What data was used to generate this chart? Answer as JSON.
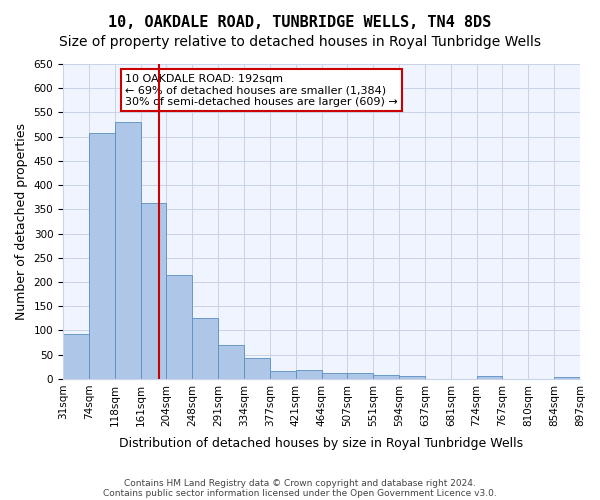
{
  "title": "10, OAKDALE ROAD, TUNBRIDGE WELLS, TN4 8DS",
  "subtitle": "Size of property relative to detached houses in Royal Tunbridge Wells",
  "xlabel": "Distribution of detached houses by size in Royal Tunbridge Wells",
  "ylabel": "Number of detached properties",
  "footnote1": "Contains HM Land Registry data © Crown copyright and database right 2024.",
  "footnote2": "Contains public sector information licensed under the Open Government Licence v3.0.",
  "bar_labels": [
    "31sqm",
    "74sqm",
    "118sqm",
    "161sqm",
    "204sqm",
    "248sqm",
    "291sqm",
    "334sqm",
    "377sqm",
    "421sqm",
    "464sqm",
    "507sqm",
    "551sqm",
    "594sqm",
    "637sqm",
    "681sqm",
    "724sqm",
    "767sqm",
    "810sqm",
    "854sqm",
    "897sqm"
  ],
  "bar_values": [
    92,
    507,
    530,
    363,
    215,
    126,
    70,
    43,
    16,
    19,
    12,
    12,
    9,
    5,
    0,
    0,
    5,
    0,
    0,
    4
  ],
  "bar_color": "#aec6e8",
  "bar_edge_color": "#5a8fc0",
  "bar_width": 1.0,
  "property_size": 192,
  "property_bar_index": 3,
  "vline_color": "#cc0000",
  "annotation_text": "10 OAKDALE ROAD: 192sqm\n← 69% of detached houses are smaller (1,384)\n30% of semi-detached houses are larger (609) →",
  "annotation_box_color": "#cc0000",
  "ylim": [
    0,
    650
  ],
  "yticks": [
    0,
    50,
    100,
    150,
    200,
    250,
    300,
    350,
    400,
    450,
    500,
    550,
    600,
    650
  ],
  "bg_color": "#f0f4ff",
  "grid_color": "#c8d4e8",
  "title_fontsize": 11,
  "subtitle_fontsize": 10,
  "xlabel_fontsize": 9,
  "ylabel_fontsize": 9,
  "tick_fontsize": 7.5,
  "annotation_fontsize": 8
}
